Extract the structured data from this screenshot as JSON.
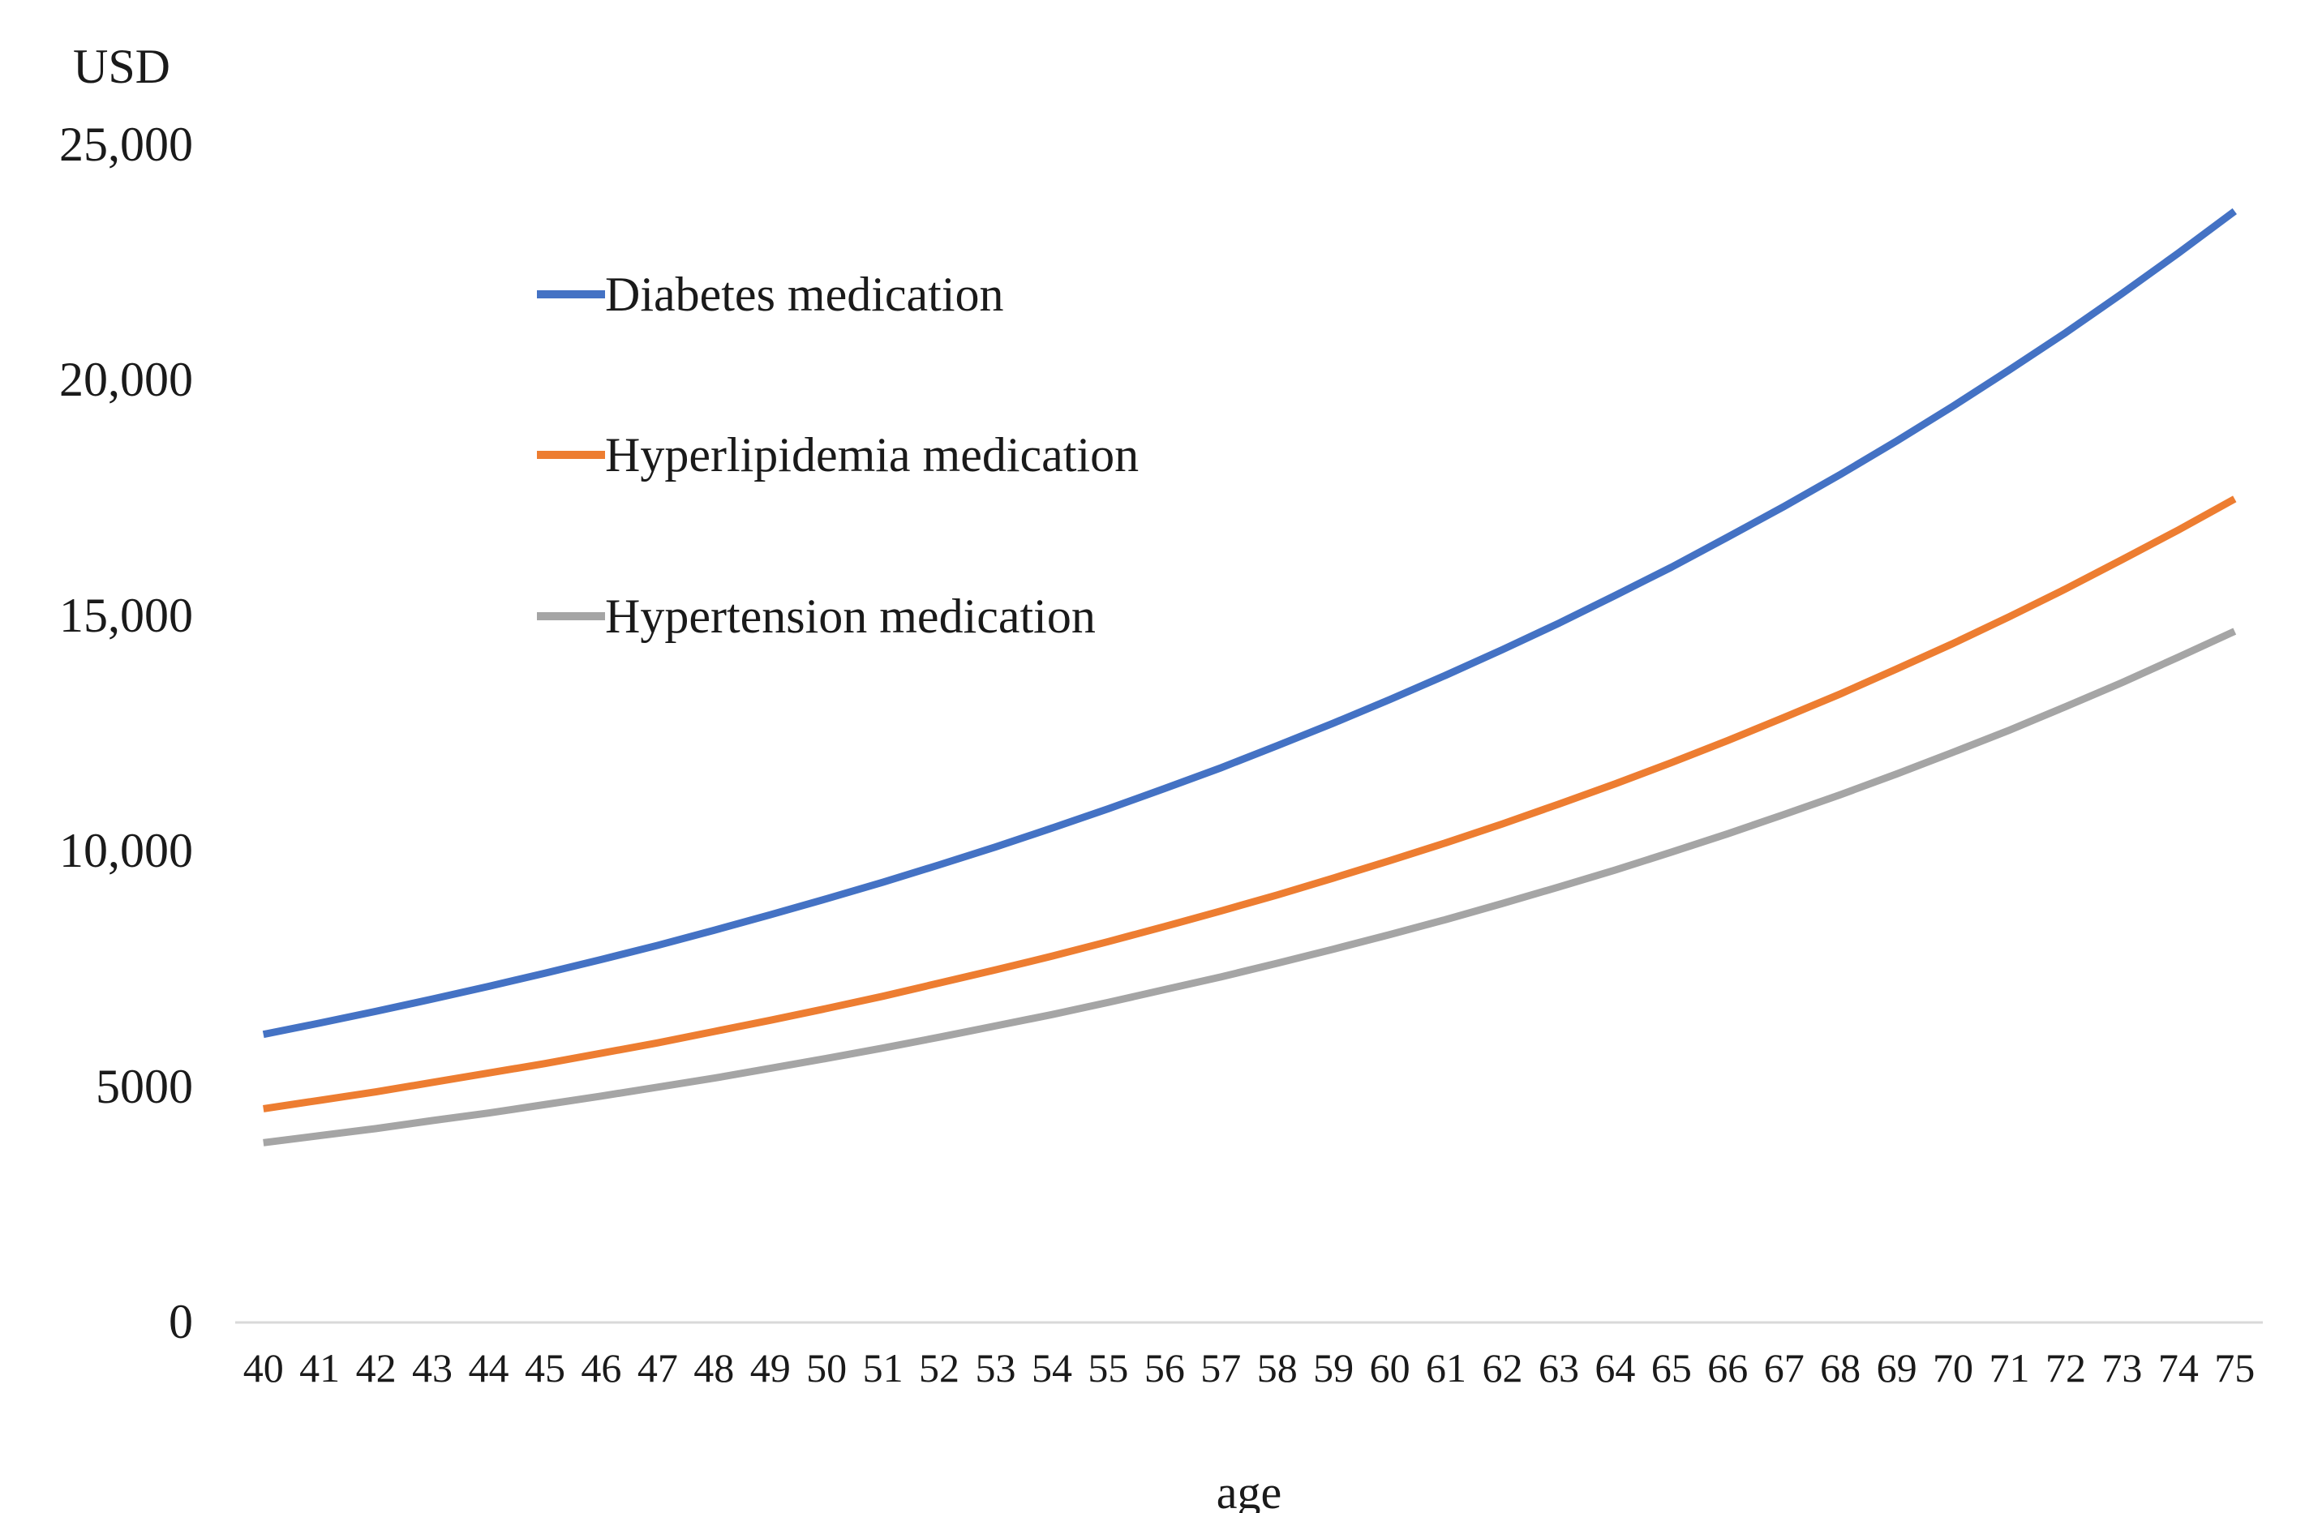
{
  "chart_data": {
    "type": "line",
    "title": "",
    "ylabel": "USD",
    "xlabel": "age",
    "ylim": [
      0,
      25000
    ],
    "grid": false,
    "legend_position": "inside-top-left",
    "axis_line_color": "#D9D9D9",
    "text_color": "#1a1a1a",
    "yticks": [
      {
        "value": 0,
        "label": "0"
      },
      {
        "value": 5000,
        "label": "5000"
      },
      {
        "value": 10000,
        "label": "10,000"
      },
      {
        "value": 15000,
        "label": "15,000"
      },
      {
        "value": 20000,
        "label": "20,000"
      },
      {
        "value": 25000,
        "label": "25,000"
      }
    ],
    "x": [
      40,
      41,
      42,
      43,
      44,
      45,
      46,
      47,
      48,
      49,
      50,
      51,
      52,
      53,
      54,
      55,
      56,
      57,
      58,
      59,
      60,
      61,
      62,
      63,
      64,
      65,
      66,
      67,
      68,
      69,
      70,
      71,
      72,
      73,
      74,
      75
    ],
    "series": [
      {
        "name": "Diabetes medication",
        "color": "#4472C4",
        "values": [
          6100,
          6340,
          6590,
          6850,
          7120,
          7400,
          7690,
          7990,
          8310,
          8640,
          8980,
          9330,
          9700,
          10080,
          10480,
          10890,
          11320,
          11760,
          12230,
          12710,
          13210,
          13730,
          14270,
          14830,
          15420,
          16020,
          16660,
          17310,
          17990,
          18700,
          19440,
          20210,
          21000,
          21830,
          22690,
          23580
        ]
      },
      {
        "name": "Hyperlipidemia medication",
        "color": "#ED7D31",
        "values": [
          4520,
          4700,
          4880,
          5080,
          5280,
          5480,
          5700,
          5920,
          6160,
          6400,
          6650,
          6910,
          7190,
          7470,
          7760,
          8070,
          8390,
          8720,
          9060,
          9420,
          9790,
          10170,
          10570,
          10990,
          11420,
          11870,
          12340,
          12830,
          13330,
          13860,
          14400,
          14970,
          15560,
          16180,
          16810,
          17470
        ]
      },
      {
        "name": "Hypertension medication",
        "color": "#A5A5A5",
        "values": [
          3800,
          3950,
          4100,
          4270,
          4430,
          4610,
          4790,
          4980,
          5170,
          5380,
          5590,
          5810,
          6040,
          6280,
          6520,
          6780,
          7050,
          7320,
          7610,
          7910,
          8220,
          8540,
          8880,
          9230,
          9590,
          9970,
          10360,
          10770,
          11190,
          11630,
          12090,
          12560,
          13060,
          13570,
          14110,
          14660
        ]
      }
    ]
  }
}
